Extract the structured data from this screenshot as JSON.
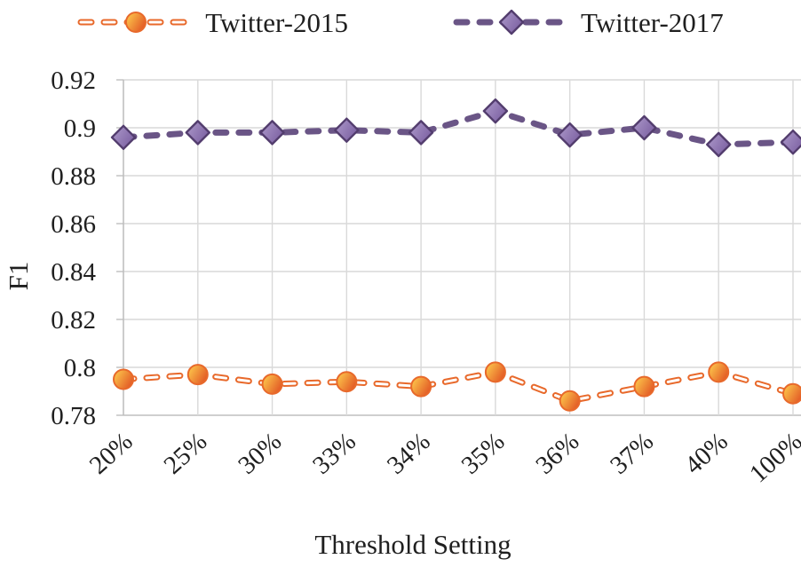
{
  "chart_data": {
    "type": "line",
    "x": [
      "20%",
      "25%",
      "30%",
      "33%",
      "34%",
      "35%",
      "36%",
      "37%",
      "40%",
      "100%"
    ],
    "series": [
      {
        "name": "Twitter-2015",
        "marker": "circle",
        "dash_style": "hollow",
        "line_color": "#E8692B",
        "marker_fill_start": "#FFD24F",
        "marker_fill_end": "#E35C26",
        "marker_stroke": "#E8692B",
        "values": [
          0.795,
          0.797,
          0.793,
          0.794,
          0.792,
          0.798,
          0.786,
          0.792,
          0.798,
          0.789
        ]
      },
      {
        "name": "Twitter-2017",
        "marker": "diamond",
        "dash_style": "solid",
        "line_color": "#6A5586",
        "marker_fill_start": "#AE9BCB",
        "marker_fill_end": "#7D62A3",
        "marker_stroke": "#533D6E",
        "values": [
          0.896,
          0.898,
          0.898,
          0.899,
          0.898,
          0.907,
          0.897,
          0.9,
          0.893,
          0.894
        ]
      }
    ],
    "title": "",
    "xlabel": "Threshold Setting",
    "ylabel": "F1",
    "ylim": [
      0.78,
      0.92
    ],
    "ytick_step": 0.02,
    "ytick_labels": [
      "0.92",
      "0.9",
      "0.88",
      "0.86",
      "0.84",
      "0.82",
      "0.8",
      "0.78"
    ],
    "grid": true,
    "legend_position": "top"
  },
  "style_colors": {
    "gridline": "#D9D9D9",
    "axis_line": "#BFBFBF",
    "text": "#1F1F1F"
  }
}
